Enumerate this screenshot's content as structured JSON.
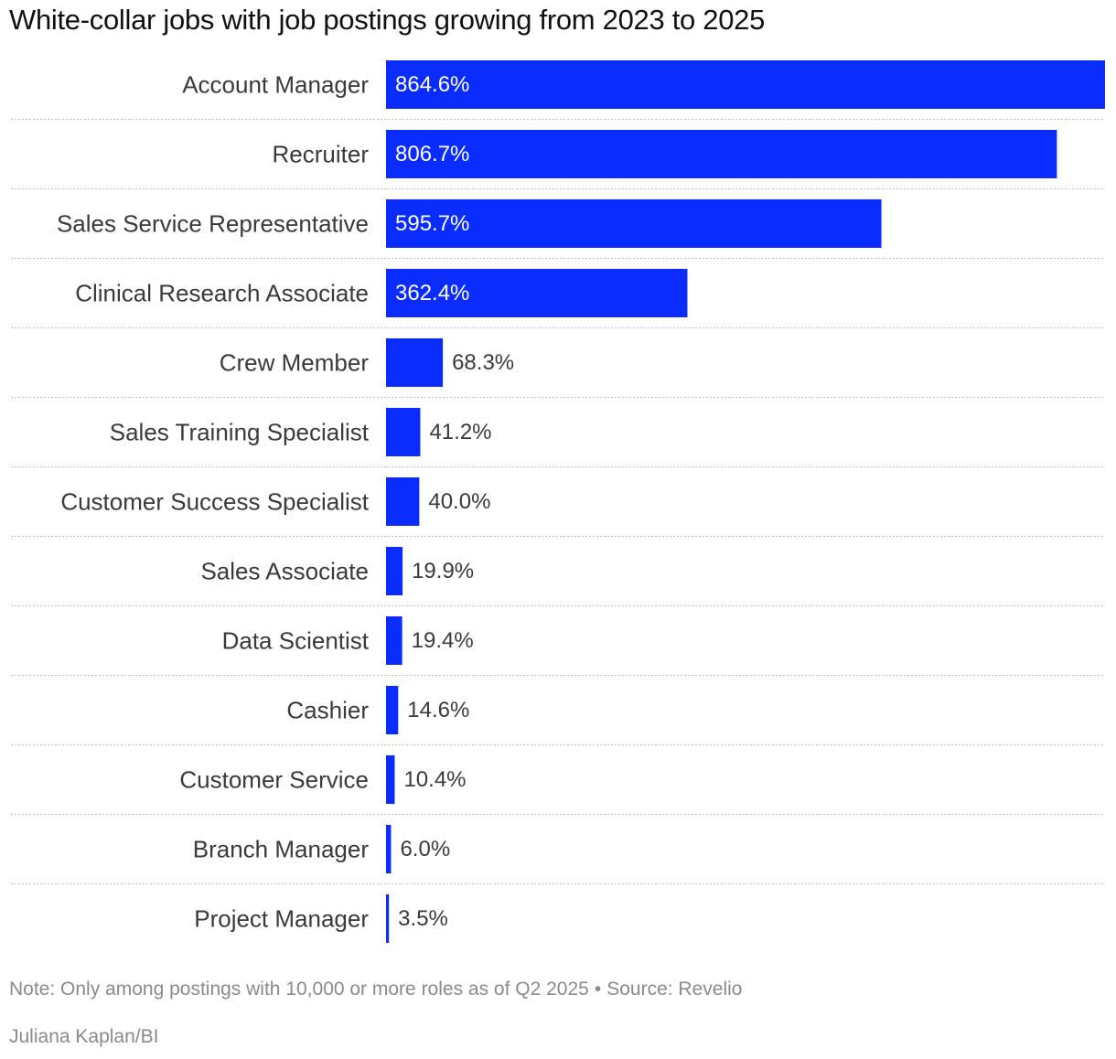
{
  "chart_data": {
    "type": "bar",
    "orientation": "horizontal",
    "title": "White-collar jobs with job postings growing from 2023 to 2025",
    "categories": [
      "Account Manager",
      "Recruiter",
      "Sales Service Representative",
      "Clinical Research Associate",
      "Crew Member",
      "Sales Training Specialist",
      "Customer Success Specialist",
      "Sales Associate",
      "Data Scientist",
      "Cashier",
      "Customer Service",
      "Branch Manager",
      "Project Manager"
    ],
    "values": [
      864.6,
      806.7,
      595.7,
      362.4,
      68.3,
      41.2,
      40.0,
      19.9,
      19.4,
      14.6,
      10.4,
      6.0,
      3.5
    ],
    "value_labels": [
      "864.6%",
      "806.7%",
      "595.7%",
      "362.4%",
      "68.3%",
      "41.2%",
      "40.0%",
      "19.9%",
      "19.4%",
      "14.6%",
      "10.4%",
      "6.0%",
      "3.5%"
    ],
    "unit": "%",
    "xlim": [
      0,
      864.6
    ],
    "bar_color": "#0a2cff",
    "grid": false,
    "row_separators": "dotted",
    "legend": "none"
  },
  "note": "Note: Only among postings with 10,000 or more roles as of Q2 2025",
  "separator": "•",
  "source": "Source: Revelio",
  "credit": "Juliana Kaplan/BI"
}
